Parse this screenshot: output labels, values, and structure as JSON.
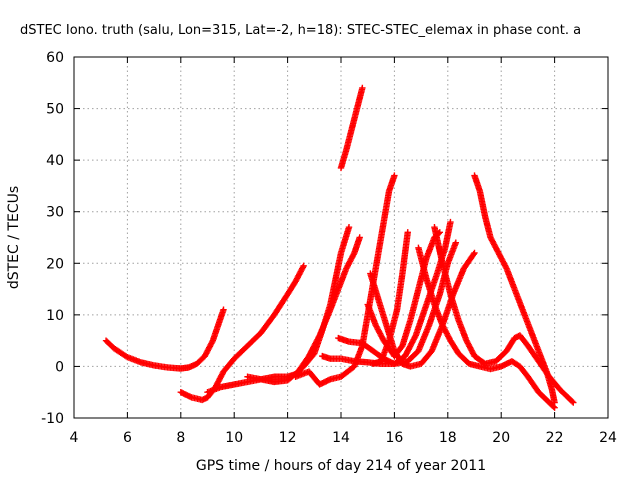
{
  "chart_data": {
    "type": "scatter",
    "title": "dSTEC Iono. truth (salu, Lon=315, Lat=-2, h=18): STEC-STEC_elemax in phase cont. a",
    "xlabel": "GPS time / hours of day 214 of year 2011",
    "ylabel": "dSTEC  / TECUs",
    "xlim": [
      4,
      24
    ],
    "ylim": [
      -10,
      60
    ],
    "xticks": [
      "4",
      "6",
      "8",
      "10",
      "12",
      "14",
      "16",
      "18",
      "20",
      "22",
      "24"
    ],
    "yticks": [
      "-10",
      "0",
      "10",
      "20",
      "30",
      "40",
      "50",
      "60"
    ],
    "grid": true,
    "marker": "plus",
    "color": "#ff0000",
    "series": [
      {
        "points": [
          [
            5.2,
            5
          ],
          [
            5.5,
            3.5
          ],
          [
            6,
            1.8
          ],
          [
            6.5,
            0.8
          ],
          [
            7,
            0.2
          ],
          [
            7.5,
            -0.2
          ],
          [
            8,
            -0.4
          ],
          [
            8.3,
            -0.2
          ],
          [
            8.6,
            0.5
          ],
          [
            8.9,
            2
          ],
          [
            9.2,
            5
          ],
          [
            9.4,
            8
          ],
          [
            9.6,
            11
          ]
        ]
      },
      {
        "points": [
          [
            8.0,
            -5
          ],
          [
            8.4,
            -6
          ],
          [
            8.8,
            -6.5
          ],
          [
            9.0,
            -6
          ],
          [
            9.3,
            -4
          ],
          [
            9.6,
            -1
          ],
          [
            10.0,
            1.5
          ],
          [
            10.5,
            4
          ],
          [
            11,
            6.5
          ],
          [
            11.5,
            10
          ],
          [
            12,
            14
          ],
          [
            12.3,
            16.5
          ],
          [
            12.6,
            19.5
          ]
        ]
      },
      {
        "points": [
          [
            9.0,
            -5
          ],
          [
            9.5,
            -4
          ],
          [
            10,
            -3.5
          ],
          [
            10.5,
            -3
          ],
          [
            11,
            -2.5
          ],
          [
            11.5,
            -2
          ],
          [
            12,
            -2
          ],
          [
            12.3,
            -1.5
          ],
          [
            12.6,
            0
          ],
          [
            13,
            2.5
          ],
          [
            13.3,
            7
          ],
          [
            13.6,
            12
          ],
          [
            13.8,
            17
          ],
          [
            14,
            22
          ],
          [
            14.3,
            27
          ]
        ]
      },
      {
        "points": [
          [
            10.5,
            -2
          ],
          [
            11,
            -2.5
          ],
          [
            11.5,
            -3
          ],
          [
            12,
            -2.7
          ],
          [
            12.4,
            -1
          ],
          [
            12.8,
            2
          ],
          [
            13.2,
            6
          ],
          [
            13.6,
            11
          ],
          [
            13.9,
            15
          ],
          [
            14.2,
            19
          ],
          [
            14.5,
            22
          ],
          [
            14.7,
            25
          ]
        ]
      },
      {
        "points": [
          [
            12.3,
            -2
          ],
          [
            12.8,
            -1
          ],
          [
            13.2,
            -3.5
          ],
          [
            13.6,
            -2.5
          ],
          [
            14,
            -2
          ],
          [
            14.5,
            0
          ],
          [
            14.8,
            4
          ],
          [
            15.0,
            10
          ],
          [
            15.2,
            16
          ],
          [
            15.4,
            22
          ],
          [
            15.6,
            28
          ],
          [
            15.8,
            34
          ],
          [
            16.0,
            37
          ]
        ]
      },
      {
        "points": [
          [
            14.0,
            38.5
          ],
          [
            14.2,
            42
          ],
          [
            14.4,
            46
          ],
          [
            14.6,
            50
          ],
          [
            14.8,
            54
          ]
        ]
      },
      {
        "points": [
          [
            13.3,
            2
          ],
          [
            13.6,
            1.5
          ],
          [
            14,
            1.5
          ],
          [
            14.5,
            1
          ],
          [
            15,
            0.8
          ],
          [
            15.5,
            0.5
          ],
          [
            16,
            0.5
          ],
          [
            16.5,
            1
          ],
          [
            16.9,
            3
          ],
          [
            17.3,
            8
          ],
          [
            17.7,
            14
          ],
          [
            18.0,
            20
          ],
          [
            18.3,
            24
          ]
        ]
      },
      {
        "points": [
          [
            13.9,
            5.5
          ],
          [
            14.3,
            4.8
          ],
          [
            14.8,
            4.5
          ],
          [
            15.2,
            3
          ],
          [
            15.6,
            1.5
          ],
          [
            16,
            0.5
          ],
          [
            16.4,
            2
          ],
          [
            16.8,
            6
          ],
          [
            17.2,
            12
          ],
          [
            17.6,
            18
          ],
          [
            17.9,
            23
          ],
          [
            18.1,
            28
          ]
        ]
      },
      {
        "points": [
          [
            15.1,
            18
          ],
          [
            15.4,
            13
          ],
          [
            15.7,
            8
          ],
          [
            16.0,
            3
          ],
          [
            16.3,
            0.5
          ],
          [
            16.6,
            0
          ],
          [
            17,
            0.5
          ],
          [
            17.4,
            3
          ],
          [
            17.8,
            8
          ],
          [
            18.2,
            14
          ],
          [
            18.6,
            19
          ],
          [
            19.0,
            22
          ]
        ]
      },
      {
        "points": [
          [
            15.0,
            12
          ],
          [
            15.3,
            8
          ],
          [
            15.6,
            5
          ],
          [
            16,
            2
          ],
          [
            16.3,
            4
          ],
          [
            16.6,
            9
          ],
          [
            16.9,
            15
          ],
          [
            17.2,
            21
          ],
          [
            17.5,
            25
          ],
          [
            17.7,
            26
          ]
        ]
      },
      {
        "points": [
          [
            15.2,
            0.5
          ],
          [
            15.5,
            1
          ],
          [
            15.8,
            5
          ],
          [
            16.1,
            11
          ],
          [
            16.3,
            18
          ],
          [
            16.5,
            26
          ]
        ]
      },
      {
        "points": [
          [
            16.9,
            23
          ],
          [
            17.2,
            17
          ],
          [
            17.5,
            12
          ],
          [
            17.8,
            8
          ],
          [
            18.1,
            5
          ],
          [
            18.4,
            2.5
          ],
          [
            18.8,
            0.5
          ],
          [
            19.2,
            0
          ],
          [
            19.6,
            -0.5
          ],
          [
            20,
            0
          ],
          [
            20.4,
            1
          ],
          [
            20.7,
            0
          ],
          [
            21.0,
            -2
          ],
          [
            21.4,
            -5
          ],
          [
            21.8,
            -7
          ],
          [
            22.0,
            -8
          ]
        ]
      },
      {
        "points": [
          [
            17.5,
            27
          ],
          [
            17.8,
            20
          ],
          [
            18.1,
            14
          ],
          [
            18.4,
            9
          ],
          [
            18.7,
            5
          ],
          [
            19,
            2
          ],
          [
            19.4,
            0.5
          ],
          [
            19.8,
            1
          ],
          [
            20.2,
            3
          ],
          [
            20.5,
            5.5
          ],
          [
            20.7,
            6
          ],
          [
            21.0,
            4
          ],
          [
            21.4,
            1
          ],
          [
            21.8,
            -2
          ],
          [
            22.2,
            -4.5
          ],
          [
            22.5,
            -6
          ],
          [
            22.7,
            -7
          ]
        ]
      },
      {
        "points": [
          [
            19.0,
            37
          ],
          [
            19.2,
            34
          ],
          [
            19.4,
            29
          ],
          [
            19.6,
            25
          ],
          [
            19.9,
            22
          ],
          [
            20.2,
            19
          ],
          [
            20.5,
            15
          ],
          [
            20.8,
            11
          ],
          [
            21.1,
            7
          ],
          [
            21.4,
            3
          ],
          [
            21.7,
            -1
          ],
          [
            21.9,
            -4.5
          ],
          [
            22.0,
            -7
          ]
        ]
      }
    ]
  }
}
